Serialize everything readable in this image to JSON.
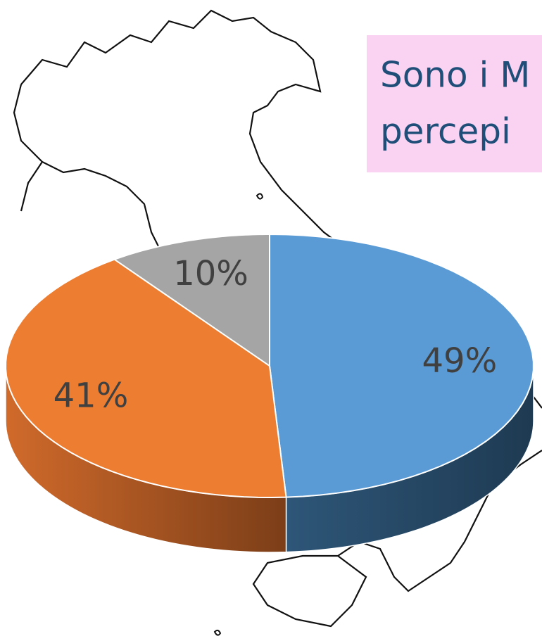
{
  "chart_data": {
    "type": "pie",
    "title_lines": [
      "Sono i M",
      "percepi"
    ],
    "categories": [
      null,
      null,
      null
    ],
    "values": [
      49,
      41,
      10
    ],
    "value_labels": [
      "49%",
      "41%",
      "10%"
    ],
    "colors": [
      "#5b9bd5",
      "#ed7d31",
      "#a5a5a5"
    ]
  }
}
